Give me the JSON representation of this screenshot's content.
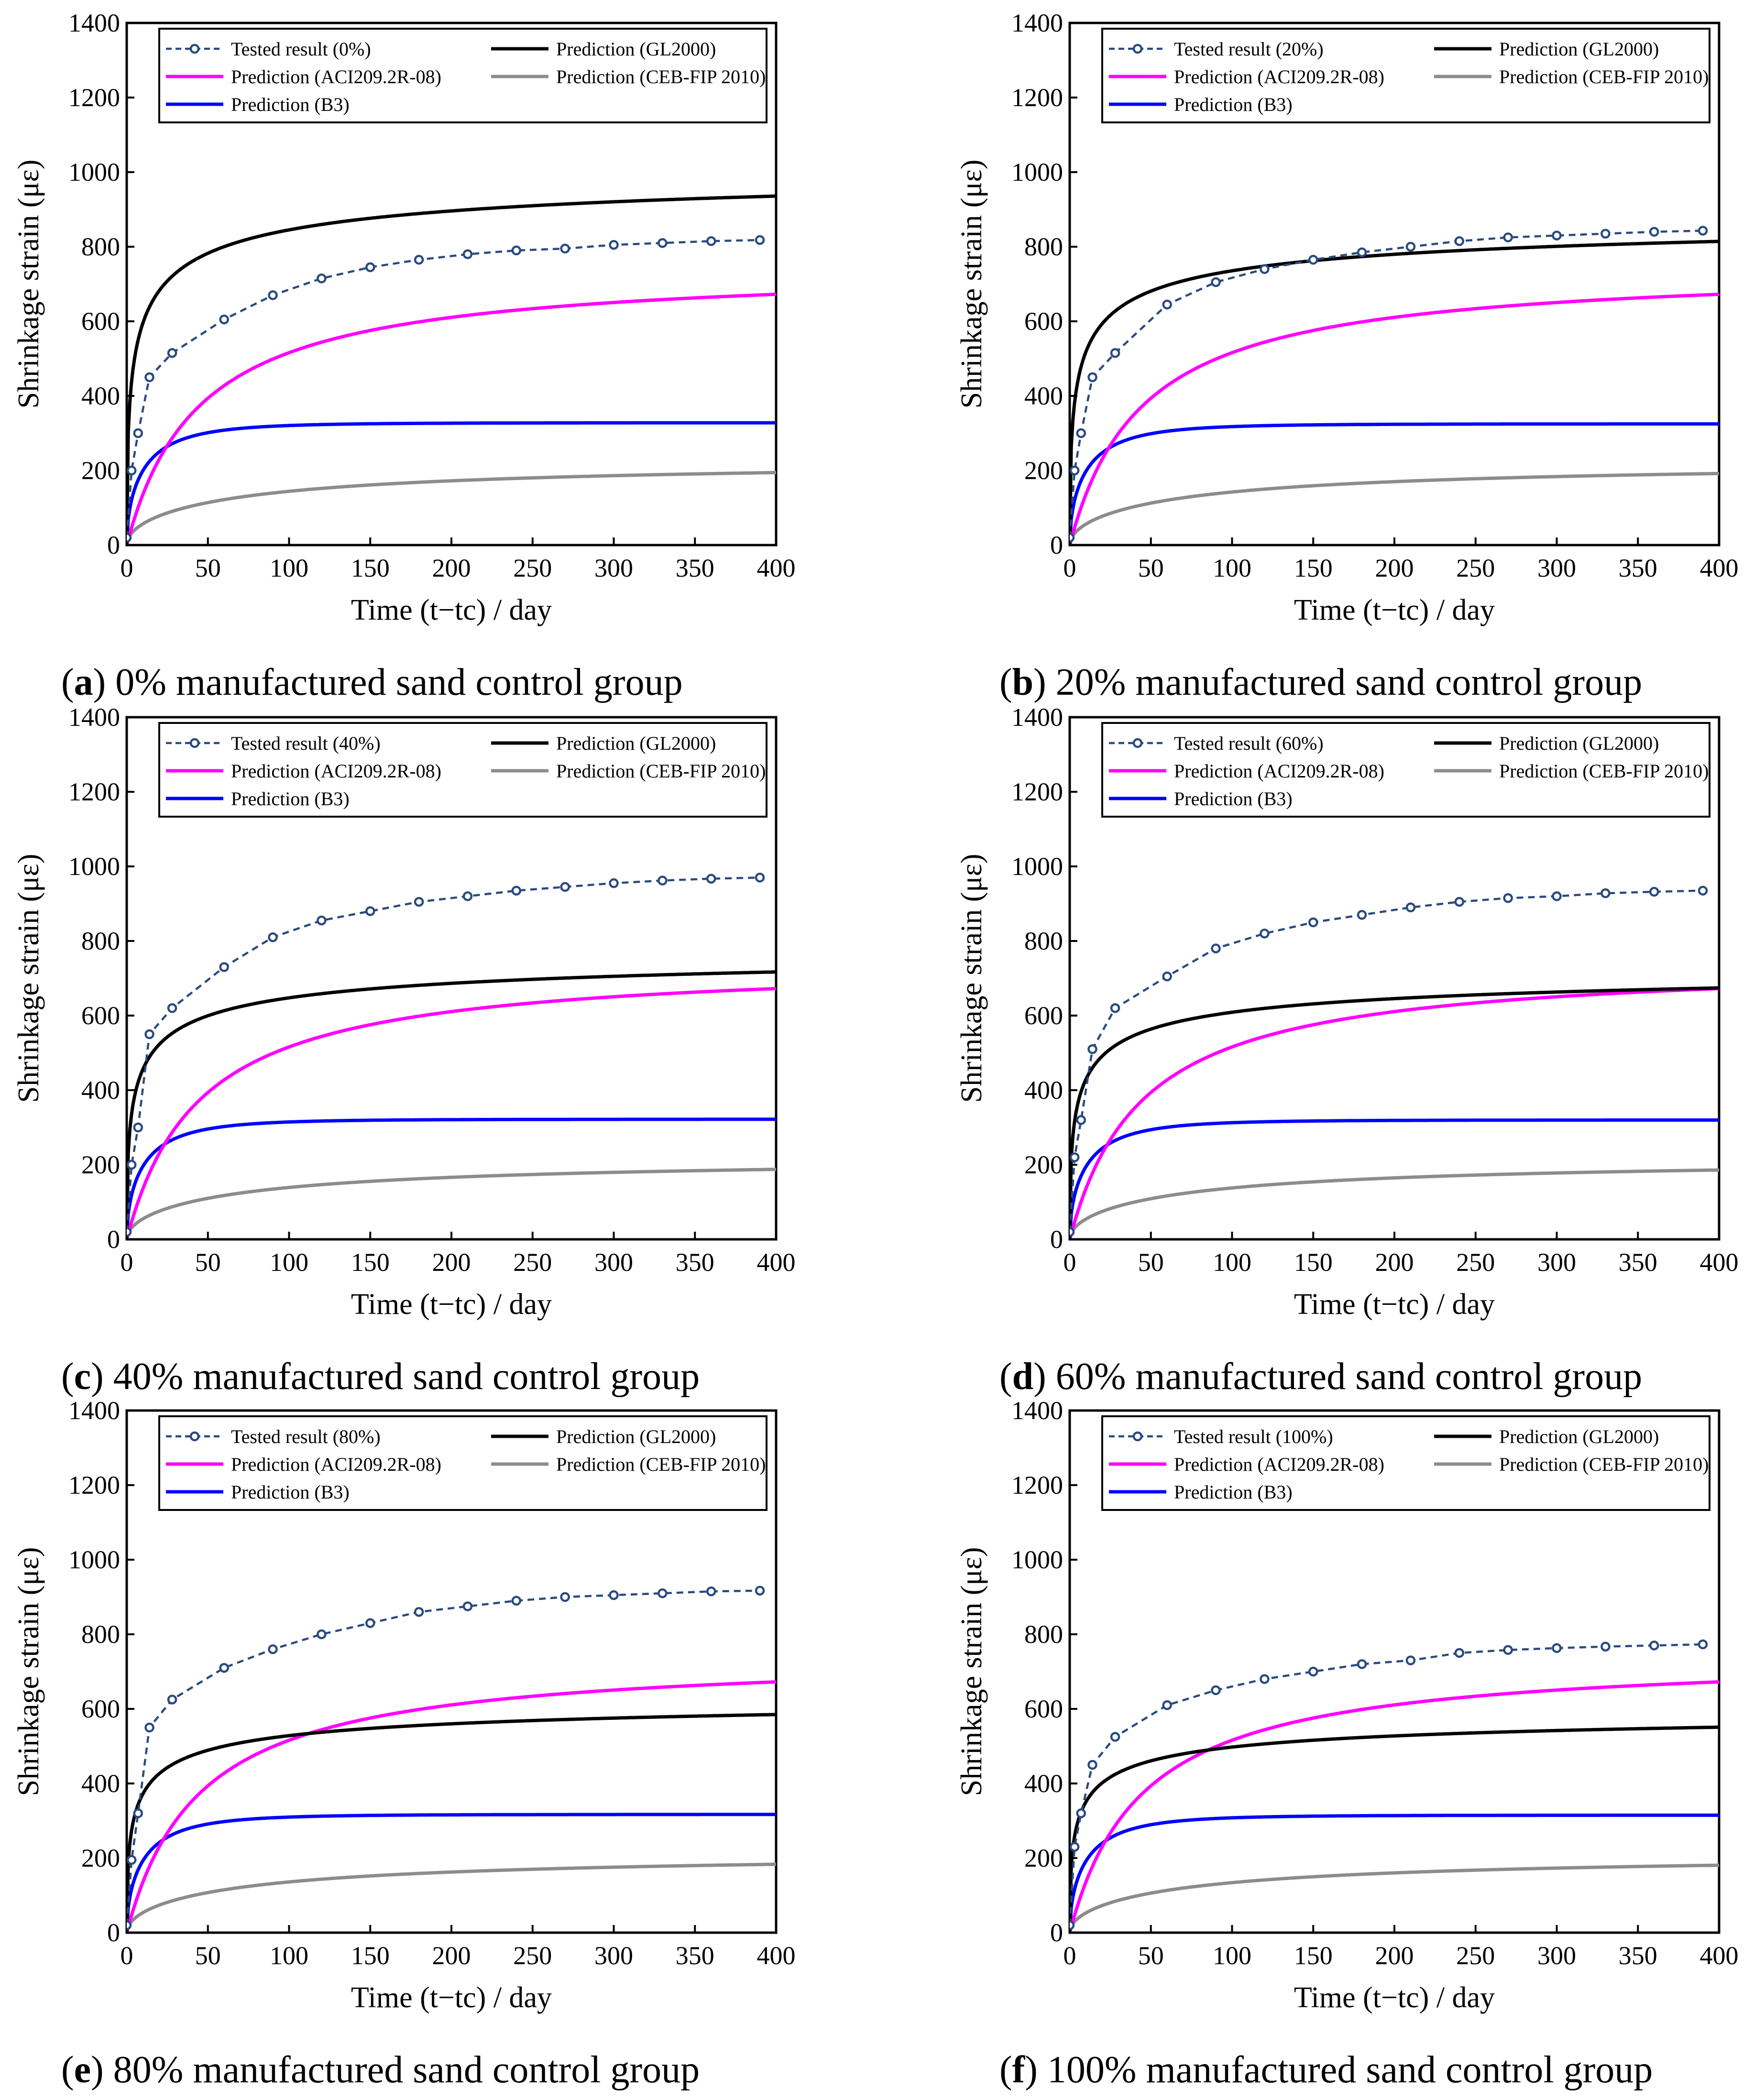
{
  "figure": {
    "colors": {
      "tested": "#2a4a7f",
      "gl2000": "#000000",
      "aci": "#ff00ff",
      "ceb": "#8c8c8c",
      "b3": "#0000ff"
    },
    "legend_labels": {
      "gl2000": "Prediction (GL2000)",
      "aci": "Prediction (ACI209.2R-08)",
      "ceb": "Prediction (CEB-FIP 2010)",
      "b3": "Prediction (B3)"
    }
  },
  "chart_data": [
    {
      "type": "line",
      "panel": "a",
      "caption_letter": "a",
      "caption_paren_open": "(",
      "caption_paren_close": ")",
      "caption": " 0% manufactured sand control group",
      "ylabel": "Shrinkage strain (με)",
      "xlabel": "Time (t−tc) / day",
      "xlim": [
        0,
        400
      ],
      "ylim": [
        0,
        1400
      ],
      "xticks": [
        0,
        50,
        100,
        150,
        200,
        250,
        300,
        350,
        400
      ],
      "yticks": [
        0,
        200,
        400,
        600,
        800,
        1000,
        1200,
        1400
      ],
      "tested_label": "Tested result (0%)",
      "tested": {
        "x": [
          0,
          3,
          7,
          14,
          28,
          60,
          90,
          120,
          150,
          180,
          210,
          240,
          270,
          300,
          330,
          360,
          390
        ],
        "y": [
          20,
          200,
          300,
          450,
          515,
          605,
          670,
          715,
          745,
          765,
          780,
          790,
          795,
          805,
          810,
          815,
          818
        ]
      },
      "predictions": {
        "gl2000": {
          "final": 1048,
          "shape": "sqrt-fast",
          "a": 2.4,
          "p": 0.5
        },
        "aci": {
          "final": 748,
          "shape": "hyperbolic",
          "f": 45
        },
        "b3": {
          "final": 328,
          "shape": "tanh-sqrt",
          "tau": 20
        },
        "ceb": {
          "final": 228,
          "shape": "sqrt-slow",
          "k": 150
        }
      }
    },
    {
      "type": "line",
      "panel": "b",
      "caption_letter": "b",
      "caption_paren_open": "(",
      "caption_paren_close": ")",
      "caption": " 20% manufactured sand control group",
      "ylabel": "Shrinkage strain (με)",
      "xlabel": "Time (t−tc) / day",
      "xlim": [
        0,
        400
      ],
      "ylim": [
        0,
        1400
      ],
      "xticks": [
        0,
        50,
        100,
        150,
        200,
        250,
        300,
        350,
        400
      ],
      "yticks": [
        0,
        200,
        400,
        600,
        800,
        1000,
        1200,
        1400
      ],
      "tested_label": "Tested result (20%)",
      "tested": {
        "x": [
          0,
          3,
          7,
          14,
          28,
          60,
          90,
          120,
          150,
          180,
          210,
          240,
          270,
          300,
          330,
          360,
          390
        ],
        "y": [
          20,
          200,
          300,
          450,
          515,
          645,
          705,
          740,
          765,
          785,
          800,
          815,
          825,
          830,
          835,
          840,
          843
        ]
      },
      "predictions": {
        "gl2000": {
          "final": 912,
          "shape": "sqrt-fast",
          "a": 2.4,
          "p": 0.5
        },
        "aci": {
          "final": 748,
          "shape": "hyperbolic",
          "f": 45
        },
        "b3": {
          "final": 325,
          "shape": "tanh-sqrt",
          "tau": 20
        },
        "ceb": {
          "final": 225,
          "shape": "sqrt-slow",
          "k": 150
        }
      }
    },
    {
      "type": "line",
      "panel": "c",
      "caption_letter": "c",
      "caption_paren_open": "(",
      "caption_paren_close": ")",
      "caption": " 40% manufactured sand control group",
      "ylabel": "Shrinkage strain (με)",
      "xlabel": "Time (t−tc) / day",
      "xlim": [
        0,
        400
      ],
      "ylim": [
        0,
        1400
      ],
      "xticks": [
        0,
        50,
        100,
        150,
        200,
        250,
        300,
        350,
        400
      ],
      "yticks": [
        0,
        200,
        400,
        600,
        800,
        1000,
        1200,
        1400
      ],
      "tested_label": "Tested result (40%)",
      "tested": {
        "x": [
          0,
          3,
          7,
          14,
          28,
          60,
          90,
          120,
          150,
          180,
          210,
          240,
          270,
          300,
          330,
          360,
          390
        ],
        "y": [
          20,
          200,
          300,
          550,
          620,
          730,
          810,
          855,
          880,
          905,
          920,
          935,
          945,
          955,
          962,
          967,
          970
        ]
      },
      "predictions": {
        "gl2000": {
          "final": 803,
          "shape": "sqrt-fast",
          "a": 2.4,
          "p": 0.5
        },
        "aci": {
          "final": 748,
          "shape": "hyperbolic",
          "f": 45
        },
        "b3": {
          "final": 322,
          "shape": "tanh-sqrt",
          "tau": 20
        },
        "ceb": {
          "final": 220,
          "shape": "sqrt-slow",
          "k": 150
        }
      }
    },
    {
      "type": "line",
      "panel": "d",
      "caption_letter": "d",
      "caption_paren_open": "(",
      "caption_paren_close": ")",
      "caption": " 60% manufactured sand control group",
      "ylabel": "Shrinkage strain (με)",
      "xlabel": "Time (t−tc) / day",
      "xlim": [
        0,
        400
      ],
      "ylim": [
        0,
        1400
      ],
      "xticks": [
        0,
        50,
        100,
        150,
        200,
        250,
        300,
        350,
        400
      ],
      "yticks": [
        0,
        200,
        400,
        600,
        800,
        1000,
        1200,
        1400
      ],
      "tested_label": "Tested result (60%)",
      "tested": {
        "x": [
          0,
          3,
          7,
          14,
          28,
          60,
          90,
          120,
          150,
          180,
          210,
          240,
          270,
          300,
          330,
          360,
          390
        ],
        "y": [
          20,
          220,
          320,
          510,
          620,
          705,
          780,
          820,
          850,
          870,
          890,
          905,
          915,
          920,
          928,
          932,
          935
        ]
      },
      "predictions": {
        "gl2000": {
          "final": 755,
          "shape": "sqrt-fast",
          "a": 2.4,
          "p": 0.5
        },
        "aci": {
          "final": 748,
          "shape": "hyperbolic",
          "f": 45
        },
        "b3": {
          "final": 320,
          "shape": "tanh-sqrt",
          "tau": 20
        },
        "ceb": {
          "final": 218,
          "shape": "sqrt-slow",
          "k": 150
        }
      }
    },
    {
      "type": "line",
      "panel": "e",
      "caption_letter": "e",
      "caption_paren_open": "(",
      "caption_paren_close": ")",
      "caption": " 80% manufactured sand control group",
      "ylabel": "Shrinkage strain (με)",
      "xlabel": "Time (t−tc) / day",
      "xlim": [
        0,
        400
      ],
      "ylim": [
        0,
        1400
      ],
      "xticks": [
        0,
        50,
        100,
        150,
        200,
        250,
        300,
        350,
        400
      ],
      "yticks": [
        0,
        200,
        400,
        600,
        800,
        1000,
        1200,
        1400
      ],
      "tested_label": "Tested result (80%)",
      "tested": {
        "x": [
          0,
          3,
          7,
          14,
          28,
          60,
          90,
          120,
          150,
          180,
          210,
          240,
          270,
          300,
          330,
          360,
          390
        ],
        "y": [
          20,
          195,
          320,
          550,
          625,
          710,
          760,
          800,
          830,
          860,
          875,
          890,
          900,
          905,
          910,
          915,
          917
        ]
      },
      "predictions": {
        "gl2000": {
          "final": 655,
          "shape": "sqrt-fast",
          "a": 2.4,
          "p": 0.5
        },
        "aci": {
          "final": 748,
          "shape": "hyperbolic",
          "f": 45
        },
        "b3": {
          "final": 317,
          "shape": "tanh-sqrt",
          "tau": 20
        },
        "ceb": {
          "final": 215,
          "shape": "sqrt-slow",
          "k": 150
        }
      }
    },
    {
      "type": "line",
      "panel": "f",
      "caption_letter": "f",
      "caption_paren_open": "(",
      "caption_paren_close": ")",
      "caption": " 100% manufactured sand control group",
      "ylabel": "Shrinkage strain (με)",
      "xlabel": "Time (t−tc) / day",
      "xlim": [
        0,
        400
      ],
      "ylim": [
        0,
        1400
      ],
      "xticks": [
        0,
        50,
        100,
        150,
        200,
        250,
        300,
        350,
        400
      ],
      "yticks": [
        0,
        200,
        400,
        600,
        800,
        1000,
        1200,
        1400
      ],
      "tested_label": "Tested result (100%)",
      "tested": {
        "x": [
          0,
          3,
          7,
          14,
          28,
          60,
          90,
          120,
          150,
          180,
          210,
          240,
          270,
          300,
          330,
          360,
          390
        ],
        "y": [
          20,
          230,
          320,
          450,
          525,
          610,
          650,
          680,
          700,
          720,
          730,
          750,
          758,
          763,
          767,
          770,
          773
        ]
      },
      "predictions": {
        "gl2000": {
          "final": 617,
          "shape": "sqrt-fast",
          "a": 2.4,
          "p": 0.5
        },
        "aci": {
          "final": 748,
          "shape": "hyperbolic",
          "f": 45
        },
        "b3": {
          "final": 315,
          "shape": "tanh-sqrt",
          "tau": 20
        },
        "ceb": {
          "final": 212,
          "shape": "sqrt-slow",
          "k": 150
        }
      }
    }
  ]
}
